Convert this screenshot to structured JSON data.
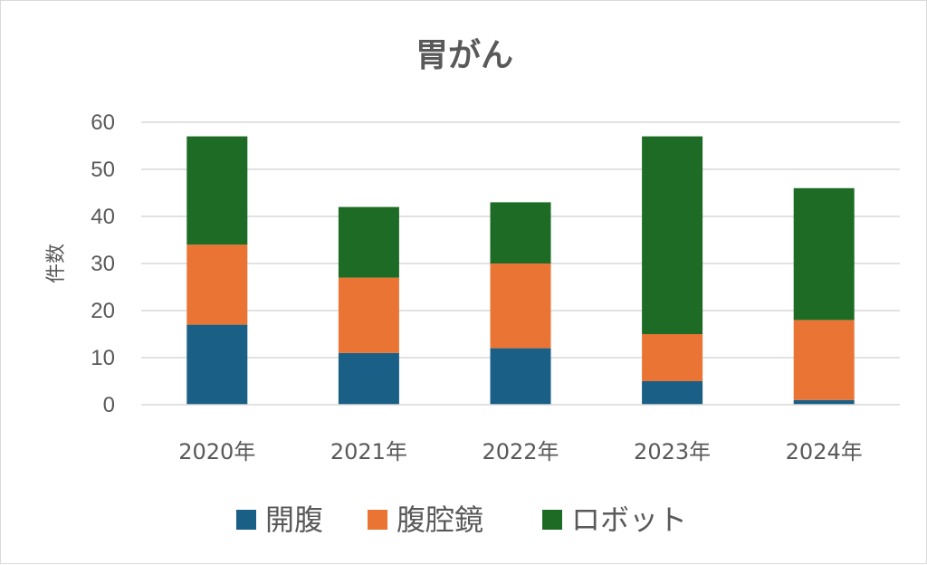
{
  "chart_data": {
    "type": "bar",
    "stacked": true,
    "title": "胃がん",
    "xlabel": "",
    "ylabel": "件数",
    "categories": [
      "2020年",
      "2021年",
      "2022年",
      "2023年",
      "2024年"
    ],
    "series": [
      {
        "name": "開腹",
        "color": "#1a5f86",
        "values": [
          17,
          11,
          12,
          5,
          1
        ]
      },
      {
        "name": "腹腔鏡",
        "color": "#ea7434",
        "values": [
          17,
          16,
          18,
          10,
          17
        ]
      },
      {
        "name": "ロボット",
        "color": "#1d6b25",
        "values": [
          23,
          15,
          13,
          42,
          28
        ]
      }
    ],
    "ylim": [
      0,
      60
    ],
    "yticks": [
      "0",
      "10",
      "20",
      "30",
      "40",
      "50",
      "60"
    ],
    "grid": true,
    "legend_position": "bottom"
  }
}
